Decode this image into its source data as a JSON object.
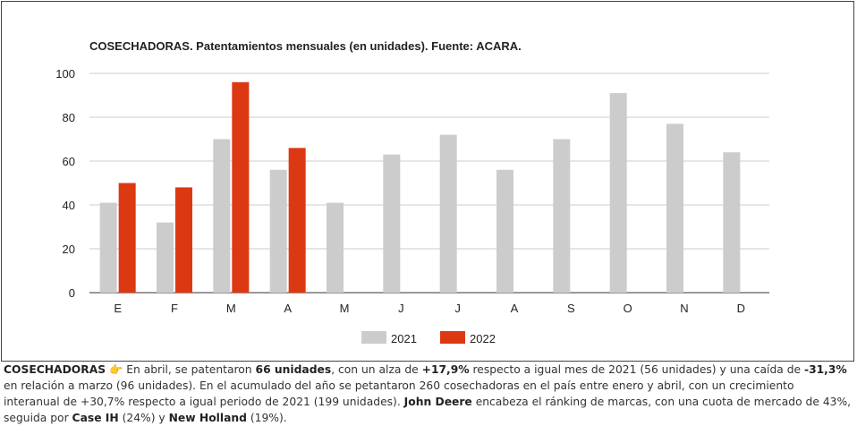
{
  "chart_data": {
    "type": "bar",
    "title": "COSECHADORAS. Patentamientos mensuales (en unidades). Fuente: ACARA.",
    "categories": [
      "E",
      "F",
      "M",
      "A",
      "M",
      "J",
      "J",
      "A",
      "S",
      "O",
      "N",
      "D"
    ],
    "series": [
      {
        "name": "2021",
        "values": [
          41,
          32,
          70,
          56,
          41,
          63,
          72,
          56,
          70,
          91,
          77,
          64
        ],
        "color": "#cccccc"
      },
      {
        "name": "2022",
        "values": [
          50,
          48,
          96,
          66,
          null,
          null,
          null,
          null,
          null,
          null,
          null,
          null
        ],
        "color": "#dc3912"
      }
    ],
    "ylim": [
      0,
      100
    ],
    "yticks": [
      0,
      20,
      40,
      60,
      80,
      100
    ],
    "grid": true,
    "legend": "bottom"
  },
  "caption": {
    "label": "COSECHADORAS",
    "icon": "pointing-hand-icon",
    "t1": " En abril, se patentaron ",
    "b1": "66 unidades",
    "t2": ", con un alza de ",
    "b2": "+17,9%",
    "t3": " respecto a igual mes de 2021 (56 unidades) y una caída de ",
    "b3": "-31,3%",
    "t4": " en relación a marzo (96 unidades). En el acumulado del año se petantaron 260 cosechadoras en el país entre enero y abril, con un crecimiento interanual de +30,7% respecto a igual periodo de 2021 (199 unidades). ",
    "b4": "John Deere",
    "t5": " encabeza el ránking de marcas, con una cuota de mercado de 43%, seguida por ",
    "b5": "Case IH",
    "t6": " (24%) y ",
    "b6": "New Holland",
    "t7": " (19%)."
  }
}
